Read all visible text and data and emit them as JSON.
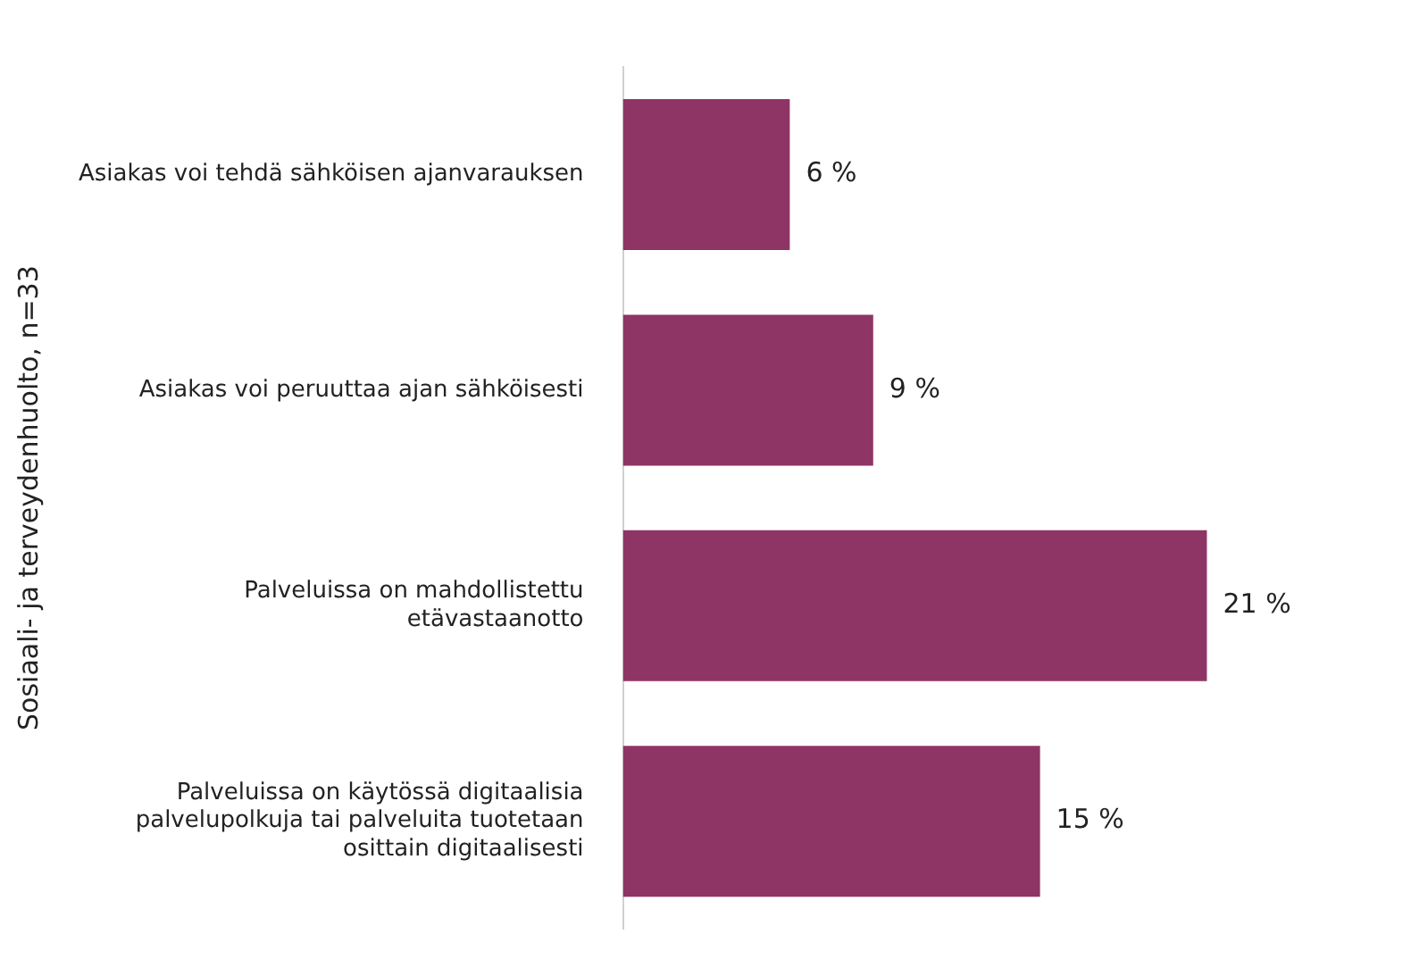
{
  "chart_data": {
    "type": "bar",
    "orientation": "horizontal",
    "ylabel": "Sosiaali- ja terveydenhuolto, n=33",
    "categories": [
      "Asiakas voi tehdä sähköisen ajanvarauksen",
      "Asiakas voi peruuttaa ajan sähköisesti",
      "Palveluissa on mahdollistettu etävastaanotto",
      "Palveluissa on käytössä digitaalisia palvelupolkuja tai palveluita tuotetaan osittain digitaalisesti"
    ],
    "values": [
      6,
      9,
      21,
      15
    ],
    "color": "#8e3566",
    "value_labels": [
      "6 %",
      "9 %",
      "21 %",
      "15 %"
    ]
  }
}
